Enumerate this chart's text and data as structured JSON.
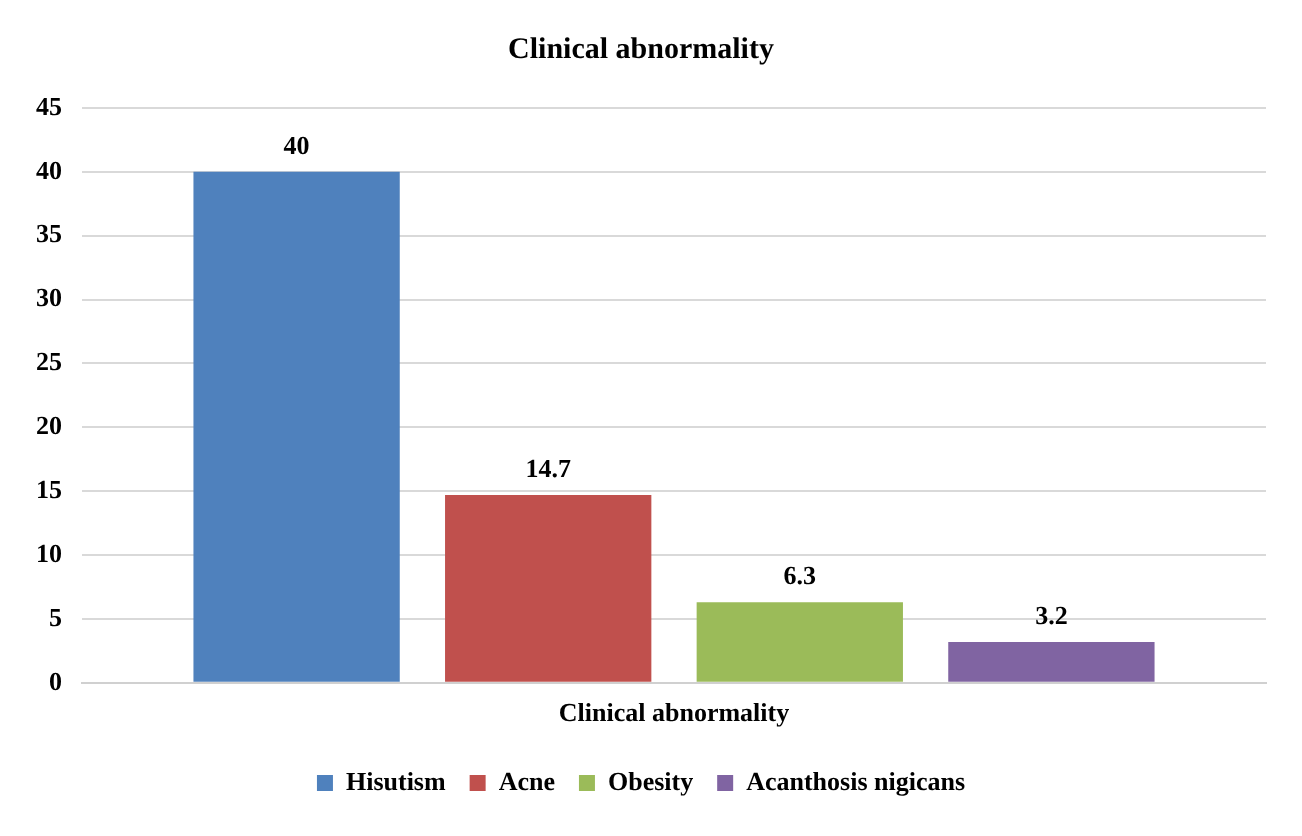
{
  "chart_data": {
    "type": "bar",
    "title": "Clinical abnormality",
    "categories": [
      "Clinical abnormality"
    ],
    "series": [
      {
        "name": "Hisutism",
        "color": "#4f81bd",
        "values": [
          40
        ]
      },
      {
        "name": "Acne",
        "color": "#c0504d",
        "values": [
          14.7
        ]
      },
      {
        "name": "Obesity",
        "color": "#9bbb59",
        "values": [
          6.3
        ]
      },
      {
        "name": "Acanthosis nigicans",
        "color": "#8064a2",
        "values": [
          3.2
        ]
      }
    ],
    "ylim": [
      0,
      45
    ],
    "yticks": [
      0,
      5,
      10,
      15,
      20,
      25,
      30,
      35,
      40,
      45
    ],
    "grid": "y",
    "legend": "bottom",
    "data_labels": true
  }
}
